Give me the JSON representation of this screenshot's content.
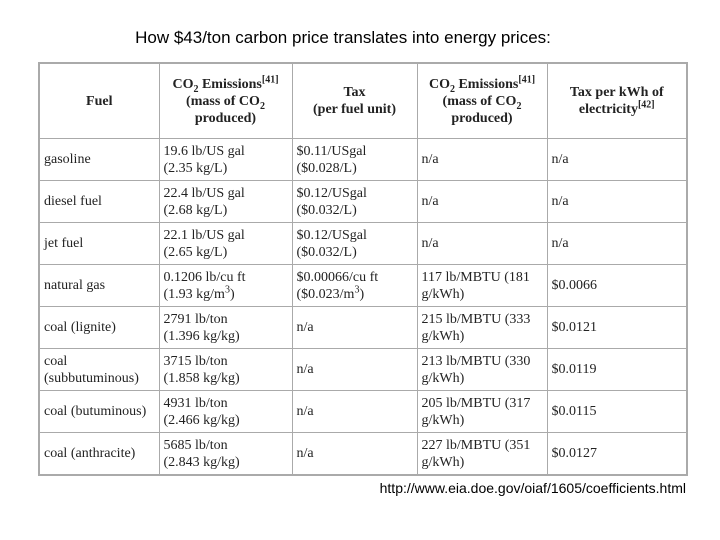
{
  "title": "How $43/ton carbon price translates into energy prices:",
  "table": {
    "header": [
      [
        [
          "Fuel"
        ]
      ],
      [
        [
          "CO",
          "2",
          " Emissions",
          "[41]"
        ],
        [
          "(mass of CO",
          "2"
        ],
        [
          "produced)"
        ]
      ],
      [
        [
          "Tax"
        ],
        [
          "(per fuel unit)"
        ]
      ],
      [
        [
          "CO",
          "2",
          " Emissions",
          "[41]"
        ],
        [
          "(mass of CO",
          "2"
        ],
        [
          "produced)"
        ]
      ],
      [
        [
          "Tax per kWh of"
        ],
        [
          "electricity",
          "[42]"
        ]
      ]
    ],
    "rows": [
      [
        [
          "gasoline"
        ],
        [
          "19.6 lb/US gal",
          "(2.35 kg/L)"
        ],
        [
          "$0.11/USgal",
          "($0.028/L)"
        ],
        [
          "n/a"
        ],
        [
          "n/a"
        ]
      ],
      [
        [
          "diesel fuel"
        ],
        [
          "22.4 lb/US gal",
          "(2.68 kg/L)"
        ],
        [
          "$0.12/USgal",
          "($0.032/L)"
        ],
        [
          "n/a"
        ],
        [
          "n/a"
        ]
      ],
      [
        [
          "jet fuel"
        ],
        [
          "22.1 lb/US gal",
          "(2.65 kg/L)"
        ],
        [
          "$0.12/USgal",
          "($0.032/L)"
        ],
        [
          "n/a"
        ],
        [
          "n/a"
        ]
      ],
      [
        [
          "natural gas"
        ],
        [
          "0.1206 lb/cu ft",
          [
            "(1.93 kg/m",
            "3",
            ")"
          ]
        ],
        [
          "$0.00066/cu ft",
          [
            "($0.023/m",
            "3",
            ")"
          ]
        ],
        [
          "117 lb/MBTU (181",
          "g/kWh)"
        ],
        [
          "$0.0066"
        ]
      ],
      [
        [
          "coal (lignite)"
        ],
        [
          "2791 lb/ton",
          "(1.396 kg/kg)"
        ],
        [
          "n/a"
        ],
        [
          "215 lb/MBTU (333",
          "g/kWh)"
        ],
        [
          "$0.0121"
        ]
      ],
      [
        [
          "coal",
          "(subbutuminous)"
        ],
        [
          "3715 lb/ton",
          "(1.858 kg/kg)"
        ],
        [
          "n/a"
        ],
        [
          "213 lb/MBTU (330",
          "g/kWh)"
        ],
        [
          "$0.0119"
        ]
      ],
      [
        [
          "coal (butuminous)"
        ],
        [
          "4931 lb/ton",
          "(2.466 kg/kg)"
        ],
        [
          "n/a"
        ],
        [
          "205 lb/MBTU (317",
          "g/kWh)"
        ],
        [
          "$0.0115"
        ]
      ],
      [
        [
          "coal (anthracite)"
        ],
        [
          "5685 lb/ton",
          "(2.843 kg/kg)"
        ],
        [
          "n/a"
        ],
        [
          "227 lb/MBTU (351",
          "g/kWh)"
        ],
        [
          "$0.0127"
        ]
      ]
    ]
  },
  "source": "http://www.eia.doe.gov/oiaf/1605/coefficients.html"
}
